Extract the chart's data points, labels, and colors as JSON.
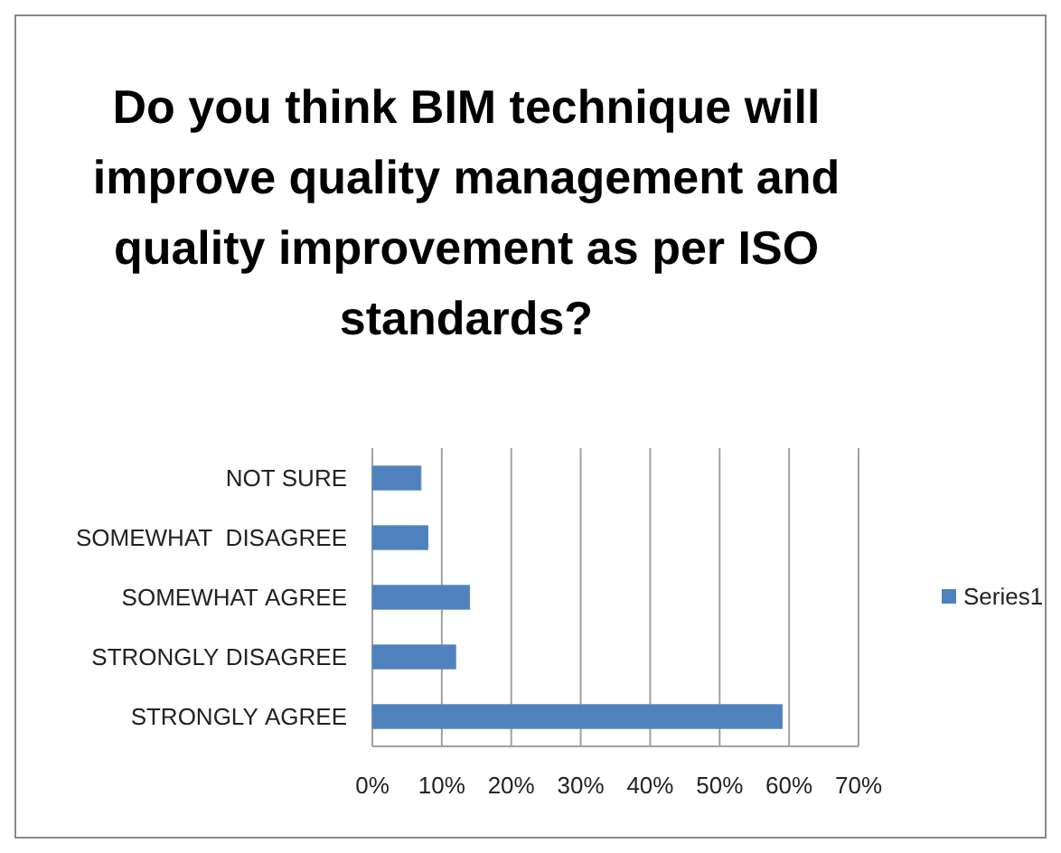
{
  "chart_data": {
    "type": "bar",
    "orientation": "horizontal",
    "title": "Do you think BIM technique will improve quality management and quality improvement as per ISO standards?",
    "categories": [
      "NOT SURE",
      "SOMEWHAT  DISAGREE",
      "SOMEWHAT AGREE",
      "STRONGLY DISAGREE",
      "STRONGLY AGREE"
    ],
    "series": [
      {
        "name": "Series1",
        "color": "#4f81bd",
        "values": [
          7,
          8,
          14,
          12,
          59
        ]
      }
    ],
    "xlim": [
      0,
      70
    ],
    "xticks": [
      {
        "value": 0,
        "label": "0%"
      },
      {
        "value": 10,
        "label": "10%"
      },
      {
        "value": 20,
        "label": "20%"
      },
      {
        "value": 30,
        "label": "30%"
      },
      {
        "value": 40,
        "label": "40%"
      },
      {
        "value": 50,
        "label": "50%"
      },
      {
        "value": 60,
        "label": "60%"
      },
      {
        "value": 70,
        "label": "70%"
      }
    ],
    "grid": "x",
    "legend": "right"
  }
}
